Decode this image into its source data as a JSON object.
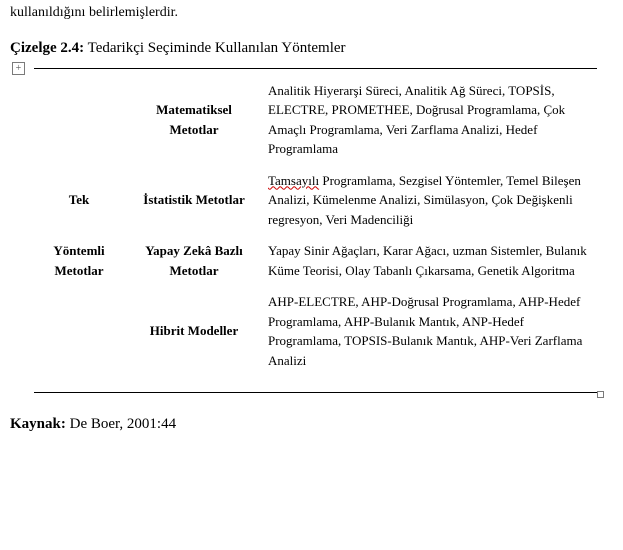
{
  "top_fragment": "kullanıldığını belirlemişlerdir.",
  "caption_label": "Çizelge 2.4:",
  "caption_text": " Tedarikçi Seçiminde Kullanılan Yöntemler",
  "plus_glyph": "+",
  "row_group_label_1": "Tek",
  "row_group_label_2": "Yöntemli",
  "row_group_label_3": "Metotlar",
  "rows": [
    {
      "method_line1": "Matematiksel",
      "method_line2": "Metotlar",
      "desc": "Analitik Hiyerarşi Süreci, Analitik Ağ Süreci, TOPSİS, ELECTRE, PROMETHEE, Doğrusal Programlama, Çok Amaçlı Programlama, Veri Zarflama Analizi, Hedef Programlama"
    },
    {
      "method_line1": "İstatistik  Metotlar",
      "method_line2": "",
      "desc_pre": "",
      "desc_red": "Tamsayılı",
      "desc_post": " Programlama, Sezgisel Yöntemler, Temel Bileşen Analizi, Kümelenme Analizi, Simülasyon, Çok Değişkenli regresyon, Veri Madenciliği"
    },
    {
      "method_line1": "Yapay Zekâ Bazlı",
      "method_line2": "Metotlar",
      "desc": "Yapay Sinir Ağaçları, Karar Ağacı, uzman Sistemler, Bulanık Küme Teorisi, Olay Tabanlı Çıkarsama, Genetik Algoritma"
    },
    {
      "method_line1": "Hibrit  Modeller",
      "method_line2": "",
      "desc": "AHP-ELECTRE, AHP-Doğrusal Programlama, AHP-Hedef Programlama, AHP-Bulanık Mantık, ANP-Hedef Programlama, TOPSIS-Bulanık Mantık, AHP-Veri Zarflama Analizi"
    }
  ],
  "source_label": "Kaynak:",
  "source_text": " De Boer, 2001:44"
}
